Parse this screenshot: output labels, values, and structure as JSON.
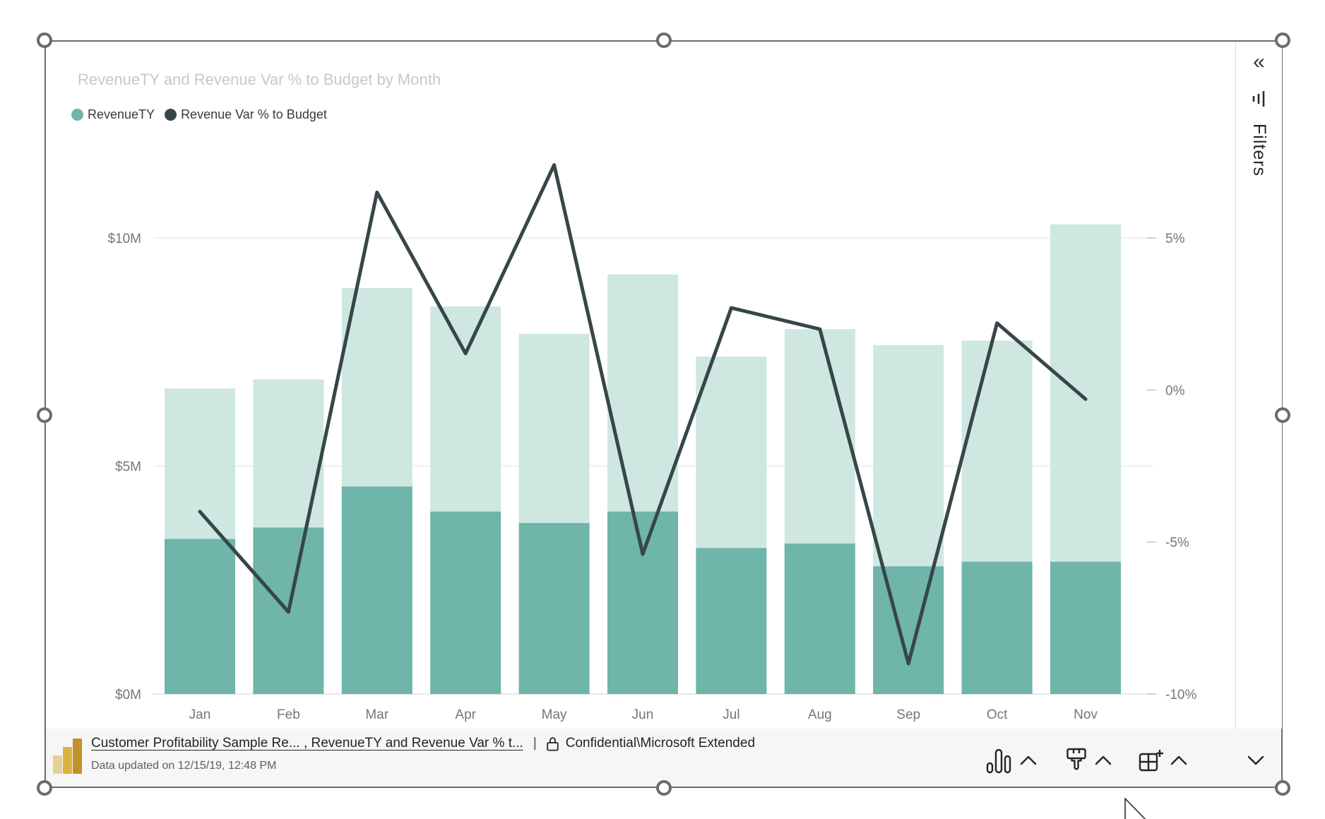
{
  "visual": {
    "title": "RevenueTY and Revenue Var % to Budget by Month",
    "legend": [
      {
        "label": "RevenueTY",
        "color": "#6fb5a9"
      },
      {
        "label": "Revenue Var % to Budget",
        "color": "#374649"
      }
    ]
  },
  "chart_data": {
    "type": "combo-bar-line",
    "title": "RevenueTY and Revenue Var % to Budget by Month",
    "categories": [
      "Jan",
      "Feb",
      "Mar",
      "Apr",
      "May",
      "Jun",
      "Jul",
      "Aug",
      "Sep",
      "Oct",
      "Nov"
    ],
    "series": [
      {
        "name": "RevenueTY",
        "type": "bar",
        "role": "total",
        "unit": "$M",
        "color": "#cfe7e1",
        "values": [
          6.7,
          6.9,
          8.9,
          8.5,
          7.9,
          9.2,
          7.4,
          8.0,
          7.65,
          7.75,
          10.3
        ]
      },
      {
        "name": "RevenueTY (highlighted)",
        "type": "bar",
        "role": "highlight",
        "unit": "$M",
        "color": "#6fb5a9",
        "values": [
          3.4,
          3.65,
          4.55,
          4.0,
          3.75,
          4.0,
          3.2,
          3.3,
          2.8,
          2.9,
          2.9
        ]
      },
      {
        "name": "Revenue Var % to Budget",
        "type": "line",
        "role": "line",
        "unit": "%",
        "color": "#374649",
        "values": [
          -4.0,
          -7.3,
          6.5,
          1.2,
          7.4,
          -5.4,
          2.7,
          2.0,
          -9.0,
          2.2,
          -0.3
        ]
      }
    ],
    "axes": {
      "left": {
        "title": "RevenueTY",
        "ticks": [
          {
            "label": "$0M",
            "value": 0
          },
          {
            "label": "$5M",
            "value": 5
          },
          {
            "label": "$10M",
            "value": 10
          }
        ],
        "range": [
          0,
          12.1
        ]
      },
      "right": {
        "title": "Revenue Var % to Budget",
        "ticks": [
          {
            "label": "-10%",
            "value": -10
          },
          {
            "label": "-5%",
            "value": -5
          },
          {
            "label": "0%",
            "value": 0
          },
          {
            "label": "5%",
            "value": 5
          }
        ],
        "range": [
          -10,
          8.2
        ]
      },
      "gridlines_at_left_values": [
        5,
        10
      ]
    },
    "legend_position": "top-left",
    "grid": "horizontal-only"
  },
  "filters_pane": {
    "label": "Filters",
    "collapse_icon": "double-chevron-left",
    "filter_icon": "funnel"
  },
  "footer": {
    "link_text": "Customer Profitability Sample Re... , RevenueTY and Revenue Var % t...",
    "separator": "|",
    "sensitivity_label": "Confidential\\Microsoft Extended",
    "updated_text": "Data updated on 12/15/19, 12:48 PM",
    "icons": [
      "column-chart",
      "chevron-up",
      "format-paint",
      "chevron-up",
      "add-field",
      "chevron-up",
      "chevron-down"
    ]
  },
  "colors": {
    "bar_total": "#cfe7e1",
    "bar_highlight": "#6fb5a9",
    "line": "#374649",
    "title_text": "#c8c8c8",
    "axis_text": "#767674",
    "gridline": "#ececec",
    "selection": "#6b6b6b",
    "footer_bg": "#f6f6f6",
    "pbi_gold_light": "#e6d096",
    "pbi_gold_mid": "#dcb23f",
    "pbi_gold_dark": "#c2912a"
  }
}
